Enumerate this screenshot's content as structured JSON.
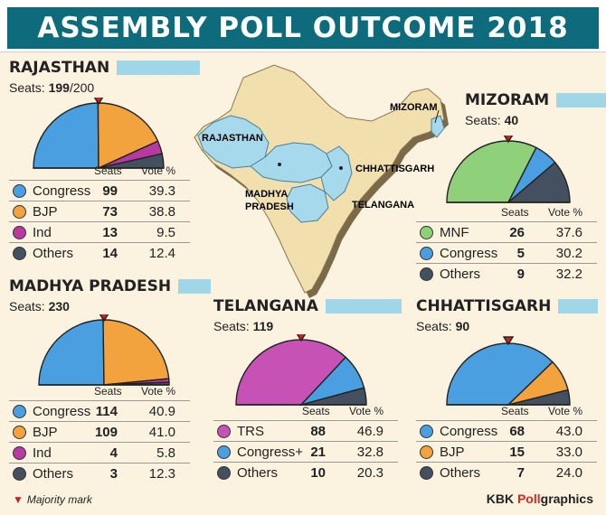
{
  "title": "ASSEMBLY POLL OUTCOME 2018",
  "colors": {
    "banner": "#0d6b7c",
    "congress": "#4a9fe0",
    "bjp": "#f3a33e",
    "ind": "#b83aa0",
    "others": "#44505f",
    "mnf": "#8fd07a",
    "trs": "#c552b4",
    "map_land": "#f1dfae",
    "map_highlight": "#a7d9ec",
    "majority_mark": "#cc2222",
    "tab": "#9fd7e8"
  },
  "table_headers": {
    "seats": "Seats",
    "vote": "Vote %"
  },
  "map_labels": {
    "rajasthan": "RAJASTHAN",
    "madhya_pradesh_1": "MADHYA",
    "madhya_pradesh_2": "PRADESH",
    "chhattisgarh": "CHHATTISGARH",
    "telangana": "TELANGANA",
    "mizoram": "MIZORAM"
  },
  "footnote": {
    "text": "Majority mark"
  },
  "credit": {
    "prefix": "KBK ",
    "highlight": "Poll",
    "suffix": "graphics"
  },
  "chart_data": [
    {
      "type": "pie",
      "title": "RAJASTHAN",
      "seats_label": "Seats:",
      "seats_value": "199",
      "seats_suffix": "/200",
      "series": [
        {
          "name": "Congress",
          "seats": 99,
          "vote": 39.3,
          "color": "#4a9fe0"
        },
        {
          "name": "BJP",
          "seats": 73,
          "vote": 38.8,
          "color": "#f3a33e"
        },
        {
          "name": "Ind",
          "seats": 13,
          "vote": 9.5,
          "color": "#b83aa0"
        },
        {
          "name": "Others",
          "seats": 14,
          "vote": 12.4,
          "color": "#44505f"
        }
      ]
    },
    {
      "type": "pie",
      "title": "MIZORAM",
      "seats_label": "Seats:",
      "seats_value": "40",
      "seats_suffix": "",
      "series": [
        {
          "name": "MNF",
          "seats": 26,
          "vote": 37.6,
          "color": "#8fd07a"
        },
        {
          "name": "Congress",
          "seats": 5,
          "vote": 30.2,
          "color": "#4a9fe0"
        },
        {
          "name": "Others",
          "seats": 9,
          "vote": 32.2,
          "color": "#44505f"
        }
      ]
    },
    {
      "type": "pie",
      "title": "MADHYA PRADESH",
      "seats_label": "Seats:",
      "seats_value": "230",
      "seats_suffix": "",
      "series": [
        {
          "name": "Congress",
          "seats": 114,
          "vote": 40.9,
          "color": "#4a9fe0"
        },
        {
          "name": "BJP",
          "seats": 109,
          "vote": 41.0,
          "color": "#f3a33e"
        },
        {
          "name": "Ind",
          "seats": 4,
          "vote": 5.8,
          "color": "#b83aa0"
        },
        {
          "name": "Others",
          "seats": 3,
          "vote": 12.3,
          "color": "#44505f"
        }
      ]
    },
    {
      "type": "pie",
      "title": "TELANGANA",
      "seats_label": "Seats:",
      "seats_value": "119",
      "seats_suffix": "",
      "series": [
        {
          "name": "TRS",
          "seats": 88,
          "vote": 46.9,
          "color": "#c552b4"
        },
        {
          "name": "Congress+",
          "seats": 21,
          "vote": 32.8,
          "color": "#4a9fe0"
        },
        {
          "name": "Others",
          "seats": 10,
          "vote": 20.3,
          "color": "#44505f"
        }
      ]
    },
    {
      "type": "pie",
      "title": "CHHATTISGARH",
      "seats_label": "Seats:",
      "seats_value": "90",
      "seats_suffix": "",
      "series": [
        {
          "name": "Congress",
          "seats": 68,
          "vote": 43.0,
          "color": "#4a9fe0"
        },
        {
          "name": "BJP",
          "seats": 15,
          "vote": 33.0,
          "color": "#f3a33e"
        },
        {
          "name": "Others",
          "seats": 7,
          "vote": 24.0,
          "color": "#44505f"
        }
      ]
    }
  ]
}
